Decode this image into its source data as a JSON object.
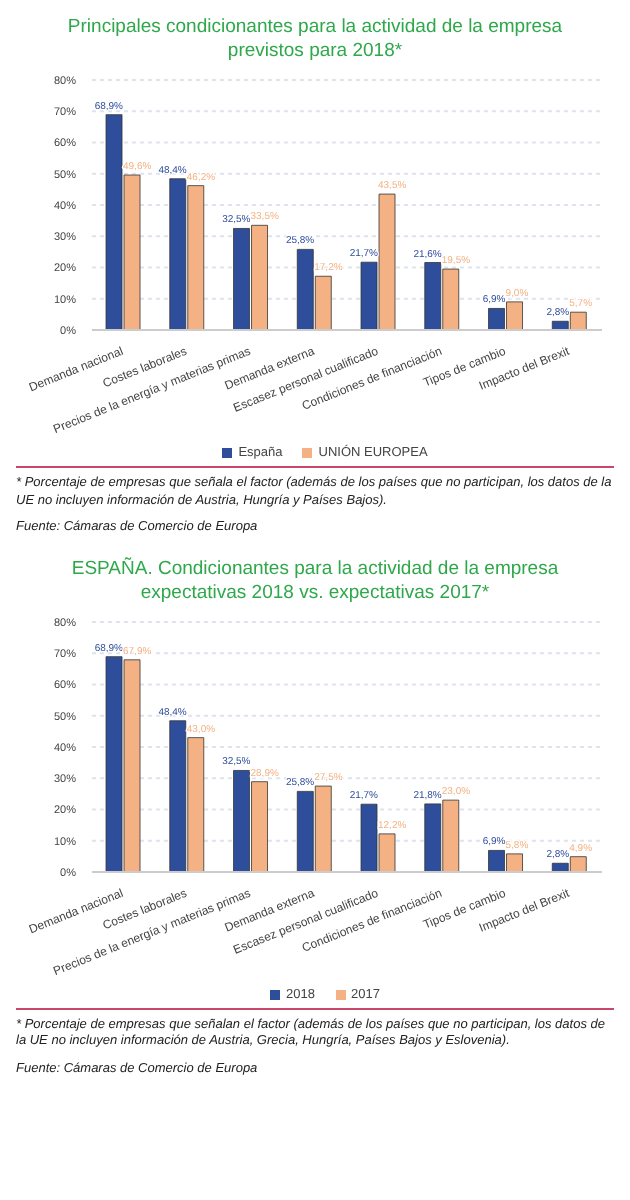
{
  "chart_data": [
    {
      "type": "bar",
      "title": "Principales condicionantes para la actividad de la empresa previstos para 2018*",
      "categories": [
        "Demanda nacional",
        "Costes laborales",
        "Precios de la energía y materias primas",
        "Demanda externa",
        "Escasez personal cualificado",
        "Condiciones de financiación",
        "Tipos de cambio",
        "Impacto del Brexit"
      ],
      "series": [
        {
          "name": "España",
          "color": "#2e4d9b",
          "values": [
            68.9,
            48.4,
            32.5,
            25.8,
            21.7,
            21.6,
            6.9,
            2.8
          ],
          "value_labels": [
            "68,9%",
            "48,4%",
            "32,5%",
            "25,8%",
            "21,7%",
            "21,6%",
            "6,9%",
            "2,8%"
          ]
        },
        {
          "name": "UNIÓN EUROPEA",
          "color": "#f4b183",
          "values": [
            49.6,
            46.2,
            33.5,
            17.2,
            43.5,
            19.5,
            9.0,
            5.7
          ],
          "value_labels": [
            "49,6%",
            "46,2%",
            "33,5%",
            "17,2%",
            "43,5%",
            "19,5%",
            "9,0%",
            "5,7%"
          ]
        }
      ],
      "ylim": [
        0,
        80
      ],
      "yticks": [
        {
          "value": 0,
          "label": "0%"
        },
        {
          "value": 10,
          "label": "10%"
        },
        {
          "value": 20,
          "label": "20%"
        },
        {
          "value": 30,
          "label": "30%"
        },
        {
          "value": 40,
          "label": "40%"
        },
        {
          "value": 50,
          "label": "50%"
        },
        {
          "value": 60,
          "label": "60%"
        },
        {
          "value": 70,
          "label": "70%"
        },
        {
          "value": 80,
          "label": "80%"
        }
      ],
      "grid": "y",
      "legend": "bottom",
      "annotations": [
        "* Porcentaje de empresas que señala el factor (además de los países que no participan, los datos de la UE no incluyen información de Austria, Hungría y Países Bajos).",
        "Fuente: Cámaras de Comercio de Europa"
      ]
    },
    {
      "type": "bar",
      "title": "ESPAÑA. Condicionantes para la actividad de la empresa expectativas 2018 vs. expectativas 2017*",
      "categories": [
        "Demanda nacional",
        "Costes laborales",
        "Precios de la energía y materias primas",
        "Demanda externa",
        "Escasez personal cualificado",
        "Condiciones de financiación",
        "Tipos de cambio",
        "Impacto del Brexit"
      ],
      "series": [
        {
          "name": "2018",
          "color": "#2e4d9b",
          "values": [
            68.9,
            48.4,
            32.5,
            25.8,
            21.7,
            21.8,
            6.9,
            2.8
          ],
          "value_labels": [
            "68,9%",
            "48,4%",
            "32,5%",
            "25,8%",
            "21,7%",
            "21,8%",
            "6,9%",
            "2,8%"
          ]
        },
        {
          "name": "2017",
          "color": "#f4b183",
          "values": [
            67.9,
            43.0,
            28.9,
            27.5,
            12.2,
            23.0,
            5.8,
            4.9
          ],
          "value_labels": [
            "67,9%",
            "43,0%",
            "28,9%",
            "27,5%",
            "12,2%",
            "23,0%",
            "5,8%",
            "4,9%"
          ]
        }
      ],
      "ylim": [
        0,
        80
      ],
      "yticks": [
        {
          "value": 0,
          "label": "0%"
        },
        {
          "value": 10,
          "label": "10%"
        },
        {
          "value": 20,
          "label": "20%"
        },
        {
          "value": 30,
          "label": "30%"
        },
        {
          "value": 40,
          "label": "40%"
        },
        {
          "value": 50,
          "label": "50%"
        },
        {
          "value": 60,
          "label": "60%"
        },
        {
          "value": 70,
          "label": "70%"
        },
        {
          "value": 80,
          "label": "80%"
        }
      ],
      "grid": "y",
      "legend": "bottom",
      "annotations": [
        "* Porcentaje de empresas que señalan el factor (además de los países que no participan, los datos de la UE no incluyen información de Austria, Grecia, Hungría, Países Bajos y Eslovenia).",
        "Fuente: Cámaras de Comercio de Europa"
      ]
    }
  ]
}
